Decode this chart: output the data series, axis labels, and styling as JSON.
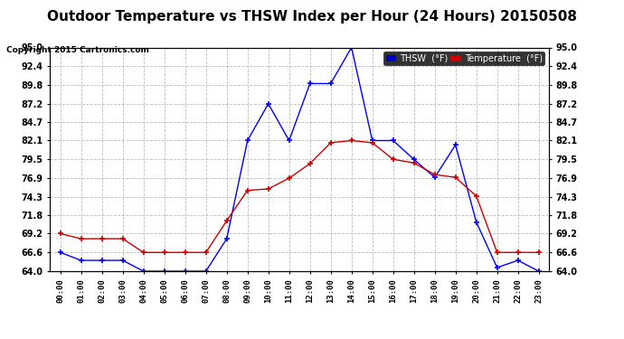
{
  "title": "Outdoor Temperature vs THSW Index per Hour (24 Hours) 20150508",
  "copyright": "Copyright 2015 Cartronics.com",
  "hours": [
    "00:00",
    "01:00",
    "02:00",
    "03:00",
    "04:00",
    "05:00",
    "06:00",
    "07:00",
    "08:00",
    "09:00",
    "10:00",
    "11:00",
    "12:00",
    "13:00",
    "14:00",
    "15:00",
    "16:00",
    "17:00",
    "18:00",
    "19:00",
    "20:00",
    "21:00",
    "22:00",
    "23:00"
  ],
  "thsw": [
    66.6,
    65.5,
    65.5,
    65.5,
    64.0,
    64.0,
    64.0,
    64.0,
    68.5,
    82.1,
    87.2,
    82.1,
    90.0,
    90.0,
    95.0,
    82.1,
    82.1,
    79.5,
    77.0,
    81.5,
    70.8,
    64.5,
    65.5,
    64.0
  ],
  "temperature": [
    69.2,
    68.5,
    68.5,
    68.5,
    66.6,
    66.6,
    66.6,
    66.6,
    71.0,
    75.2,
    75.4,
    76.9,
    78.9,
    81.8,
    82.1,
    81.8,
    79.5,
    79.0,
    77.4,
    77.0,
    74.4,
    66.6,
    66.6,
    66.6
  ],
  "ylim_min": 64.0,
  "ylim_max": 95.0,
  "yticks": [
    64.0,
    66.6,
    69.2,
    71.8,
    74.3,
    76.9,
    79.5,
    82.1,
    84.7,
    87.2,
    89.8,
    92.4,
    95.0
  ],
  "thsw_color": "#0000ff",
  "temp_color": "#cc0000",
  "background_color": "#ffffff",
  "grid_color": "#bbbbbb",
  "title_fontsize": 11,
  "legend_thsw_bg": "#0000cc",
  "legend_temp_bg": "#cc0000",
  "legend_text_color": "#ffffff"
}
